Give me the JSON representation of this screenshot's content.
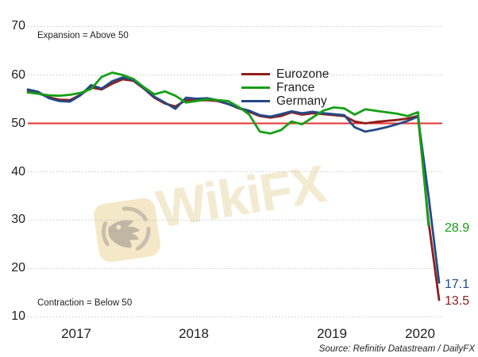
{
  "watermark": {
    "text": "WikiFX"
  },
  "source": {
    "text": "Source: Refinitiv Datastream / DailyFX"
  },
  "chart_data": {
    "type": "line",
    "title": "",
    "x_unit": "month",
    "x_range": [
      "2017-01",
      "2020-04"
    ],
    "ylim": [
      10,
      70
    ],
    "grid": true,
    "grid_color": "#c9c9c9",
    "legend_position": "top-center",
    "yticks": [
      {
        "label": "70",
        "value": 70
      },
      {
        "label": "60",
        "value": 60
      },
      {
        "label": "50",
        "value": 50
      },
      {
        "label": "40",
        "value": 40
      },
      {
        "label": "30",
        "value": 30
      },
      {
        "label": "20",
        "value": 20
      },
      {
        "label": "10",
        "value": 10
      }
    ],
    "xticks": [
      {
        "label": "2017"
      },
      {
        "label": "2018"
      },
      {
        "label": "2019"
      },
      {
        "label": "2020"
      }
    ],
    "reference_line": {
      "value": 50,
      "color": "#e43434"
    },
    "annotations": [
      {
        "text": "Expansion = Above 50"
      },
      {
        "text": "Contraction = Below 50"
      }
    ],
    "series": [
      {
        "name": "Eurozone",
        "color": "#8e1e1e",
        "end_label": "13.5",
        "values": [
          56.6,
          56.2,
          55.4,
          54.9,
          54.8,
          55.9,
          57.4,
          57.0,
          58.2,
          59.1,
          58.8,
          57.2,
          55.3,
          54.1,
          53.5,
          54.8,
          54.7,
          54.8,
          54.6,
          54.0,
          53.1,
          52.4,
          51.5,
          51.2,
          51.5,
          52.3,
          51.8,
          52.1,
          51.9,
          51.7,
          51.5,
          50.4,
          50.0,
          50.3,
          50.5,
          50.7,
          51.0,
          51.5,
          29.7,
          13.5
        ]
      },
      {
        "name": "France",
        "color": "#15a015",
        "end_label": "28.9",
        "values": [
          56.4,
          56.1,
          55.8,
          55.7,
          55.9,
          56.3,
          57.1,
          59.6,
          60.5,
          60.0,
          59.2,
          57.5,
          56.0,
          56.6,
          55.7,
          54.3,
          54.6,
          55.0,
          54.8,
          54.6,
          53.4,
          51.8,
          48.3,
          47.9,
          48.6,
          50.4,
          49.8,
          51.2,
          52.6,
          53.3,
          53.1,
          51.8,
          52.9,
          52.6,
          52.3,
          52.0,
          51.5,
          52.3,
          28.9
        ]
      },
      {
        "name": "Germany",
        "color": "#234a87",
        "end_label": "17.1",
        "values": [
          57.0,
          56.5,
          55.2,
          54.6,
          54.5,
          55.8,
          57.9,
          57.2,
          58.7,
          59.5,
          59.0,
          57.3,
          55.5,
          54.3,
          53.0,
          55.3,
          55.1,
          55.2,
          54.8,
          54.0,
          53.2,
          52.6,
          51.7,
          51.4,
          51.9,
          52.5,
          52.1,
          52.4,
          52.1,
          51.9,
          51.7,
          49.2,
          48.3,
          48.7,
          49.2,
          49.8,
          50.5,
          51.4,
          35.0,
          17.1
        ]
      }
    ]
  }
}
